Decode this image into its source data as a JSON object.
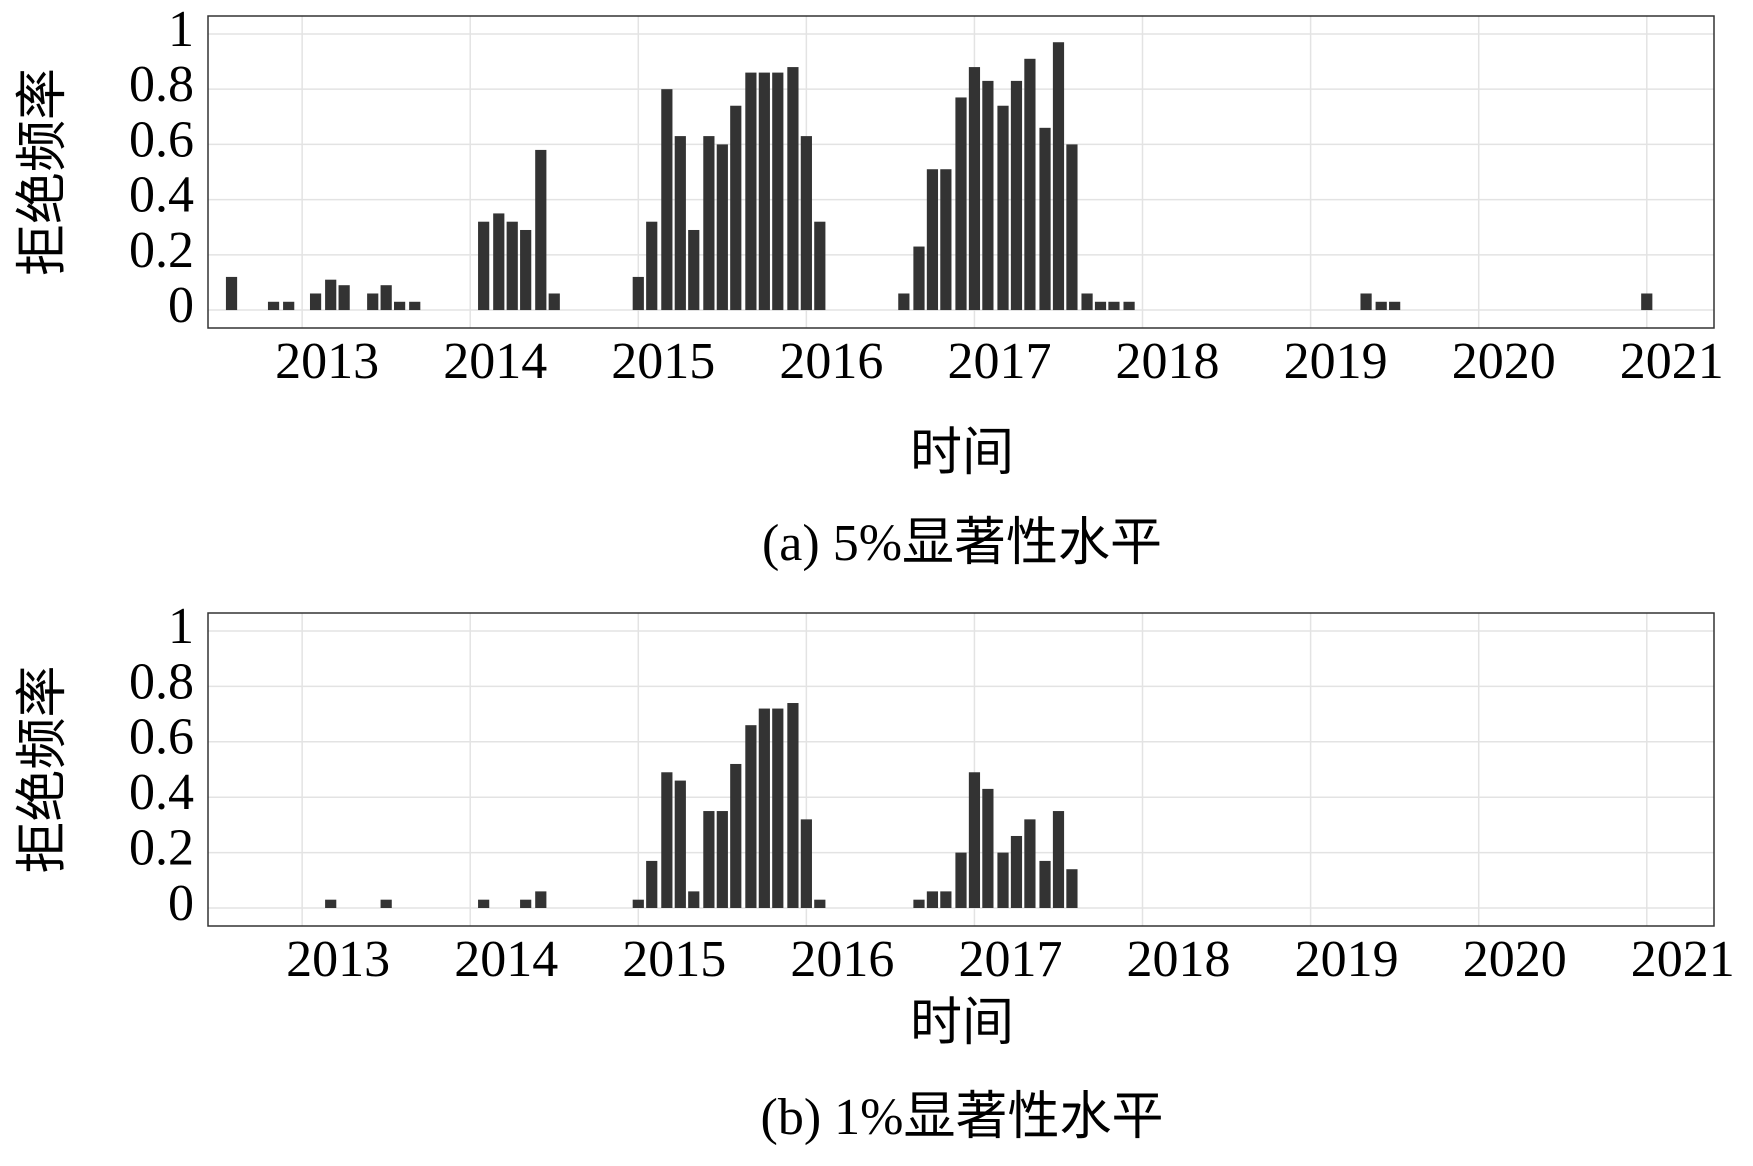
{
  "chart_data": [
    {
      "type": "bar",
      "ylabel": "拒绝频率",
      "xlabel": "时间",
      "caption": "(a) 5%显著性水平",
      "color": "#333333",
      "grid": true,
      "xlim": [
        2012.44,
        2021.4
      ],
      "ylim": [
        -0.065,
        1.065
      ],
      "xticks": [
        2013,
        2014,
        2015,
        2016,
        2017,
        2018,
        2019,
        2020,
        2021
      ],
      "yticks": [
        0,
        0.2,
        0.4,
        0.6,
        0.8,
        1
      ],
      "x": [
        2012.58,
        2012.83,
        2012.92,
        2013.08,
        2013.17,
        2013.25,
        2013.42,
        2013.5,
        2013.58,
        2013.67,
        2014.08,
        2014.17,
        2014.25,
        2014.33,
        2014.42,
        2014.5,
        2015.0,
        2015.08,
        2015.17,
        2015.25,
        2015.33,
        2015.42,
        2015.5,
        2015.58,
        2015.67,
        2015.75,
        2015.83,
        2015.92,
        2016.0,
        2016.08,
        2016.58,
        2016.67,
        2016.75,
        2016.83,
        2016.92,
        2017.0,
        2017.08,
        2017.17,
        2017.25,
        2017.33,
        2017.42,
        2017.5,
        2017.58,
        2017.67,
        2017.75,
        2017.83,
        2017.92,
        2019.33,
        2019.42,
        2019.5,
        2021.0
      ],
      "values": [
        0.12,
        0.03,
        0.03,
        0.06,
        0.11,
        0.09,
        0.06,
        0.09,
        0.03,
        0.03,
        0.32,
        0.35,
        0.32,
        0.29,
        0.58,
        0.06,
        0.12,
        0.32,
        0.8,
        0.63,
        0.29,
        0.63,
        0.6,
        0.74,
        0.86,
        0.86,
        0.86,
        0.88,
        0.63,
        0.32,
        0.06,
        0.23,
        0.51,
        0.51,
        0.77,
        0.88,
        0.83,
        0.74,
        0.83,
        0.91,
        0.66,
        0.97,
        0.6,
        0.06,
        0.03,
        0.03,
        0.03,
        0.06,
        0.03,
        0.03,
        0.06
      ]
    },
    {
      "type": "bar",
      "ylabel": "拒绝频率",
      "xlabel": "时间",
      "caption": "(b) 1%显著性水平",
      "color": "#333333",
      "grid": true,
      "xlim": [
        2012.44,
        2021.4
      ],
      "ylim": [
        -0.065,
        1.065
      ],
      "xticks": [
        2013,
        2014,
        2015,
        2016,
        2017,
        2018,
        2019,
        2020,
        2021
      ],
      "yticks": [
        0,
        0.2,
        0.4,
        0.6,
        0.8,
        1
      ],
      "x": [
        2013.17,
        2013.5,
        2014.08,
        2014.33,
        2014.42,
        2015.0,
        2015.08,
        2015.17,
        2015.25,
        2015.33,
        2015.42,
        2015.5,
        2015.58,
        2015.67,
        2015.75,
        2015.83,
        2015.92,
        2016.0,
        2016.08,
        2016.67,
        2016.75,
        2016.83,
        2016.92,
        2017.0,
        2017.08,
        2017.17,
        2017.25,
        2017.33,
        2017.42,
        2017.5,
        2017.58
      ],
      "values": [
        0.03,
        0.03,
        0.03,
        0.03,
        0.06,
        0.03,
        0.17,
        0.49,
        0.46,
        0.06,
        0.35,
        0.35,
        0.52,
        0.66,
        0.72,
        0.72,
        0.74,
        0.32,
        0.03,
        0.03,
        0.06,
        0.06,
        0.2,
        0.49,
        0.43,
        0.2,
        0.26,
        0.32,
        0.17,
        0.35,
        0.14
      ]
    }
  ]
}
